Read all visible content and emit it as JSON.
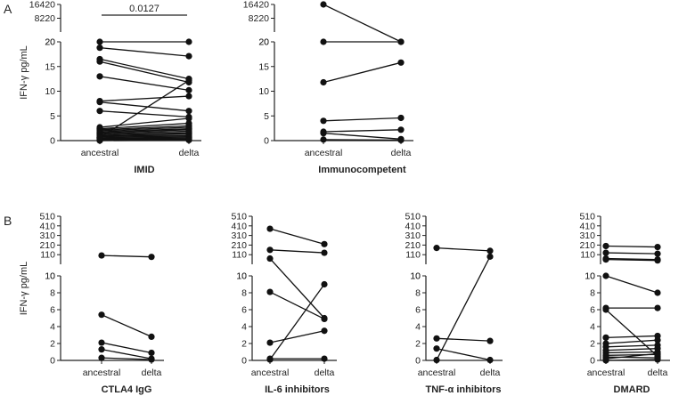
{
  "chart_data": [
    {
      "type": "scatter",
      "layout_style": "paired-lines",
      "panel_label": "A",
      "title": "IMID",
      "ylabel": "IFN-γ pg/mL",
      "categories": [
        "ancestral",
        "delta"
      ],
      "y_axis_segments": [
        {
          "ylim": [
            0,
            20
          ],
          "ticks": [
            0,
            5,
            10,
            15,
            20
          ]
        },
        {
          "ylim": [
            20,
            16420
          ],
          "ticks": [
            20,
            8220,
            16420
          ]
        }
      ],
      "significance": {
        "label": "0.0127",
        "between": [
          "ancestral",
          "delta"
        ]
      },
      "pairs": [
        [
          20,
          20
        ],
        [
          18.8,
          17.1
        ],
        [
          16.5,
          12.5
        ],
        [
          16,
          11.8
        ],
        [
          13,
          10.2
        ],
        [
          8,
          9
        ],
        [
          7.8,
          6
        ],
        [
          6,
          4.8
        ],
        [
          2.7,
          4.5
        ],
        [
          2.4,
          3.5
        ],
        [
          2.2,
          3
        ],
        [
          2,
          2.7
        ],
        [
          1.8,
          2.4
        ],
        [
          1.6,
          2.2
        ],
        [
          1.4,
          1.9
        ],
        [
          1.2,
          1.6
        ],
        [
          1,
          1.4
        ],
        [
          0.9,
          1.1
        ],
        [
          0.7,
          0.9
        ],
        [
          0.5,
          0.7
        ],
        [
          0.4,
          0.5
        ],
        [
          0.3,
          0.3
        ],
        [
          0.1,
          0.2
        ],
        [
          0,
          0.1
        ],
        [
          0.6,
          12.2
        ]
      ]
    },
    {
      "type": "scatter",
      "layout_style": "paired-lines",
      "panel_label": "",
      "title": "Immunocompetent",
      "ylabel": "",
      "categories": [
        "ancestral",
        "delta"
      ],
      "y_axis_segments": [
        {
          "ylim": [
            0,
            20
          ],
          "ticks": [
            0,
            5,
            10,
            15,
            20
          ]
        },
        {
          "ylim": [
            20,
            16420
          ],
          "ticks": [
            20,
            8220,
            16420
          ]
        }
      ],
      "pairs": [
        [
          16420,
          20
        ],
        [
          20,
          20
        ],
        [
          11.8,
          15.8
        ],
        [
          4,
          4.6
        ],
        [
          1.8,
          2.2
        ],
        [
          1.5,
          0.3
        ],
        [
          0.2,
          0.1
        ]
      ]
    },
    {
      "type": "scatter",
      "layout_style": "paired-lines",
      "panel_label": "B",
      "title": "CTLA4 IgG",
      "ylabel": "IFN-γ pg/mL",
      "categories": [
        "ancestral",
        "delta"
      ],
      "y_axis_segments": [
        {
          "ylim": [
            0,
            10
          ],
          "ticks": [
            0,
            2,
            4,
            6,
            8,
            10
          ]
        },
        {
          "ylim": [
            10,
            510
          ],
          "ticks": [
            10,
            110,
            210,
            310,
            410,
            510
          ]
        }
      ],
      "pairs": [
        [
          102,
          87
        ],
        [
          5.4,
          2.8
        ],
        [
          2.1,
          0.9
        ],
        [
          1.3,
          0.2
        ],
        [
          0.3,
          0.1
        ]
      ]
    },
    {
      "type": "scatter",
      "layout_style": "paired-lines",
      "panel_label": "",
      "title": "IL-6 inhibitors",
      "ylabel": "",
      "categories": [
        "ancestral",
        "delta"
      ],
      "y_axis_segments": [
        {
          "ylim": [
            0,
            10
          ],
          "ticks": [
            0,
            2,
            4,
            6,
            8,
            10
          ]
        },
        {
          "ylim": [
            10,
            510
          ],
          "ticks": [
            10,
            110,
            210,
            310,
            410,
            510
          ]
        }
      ],
      "pairs": [
        [
          380,
          220
        ],
        [
          160,
          130
        ],
        [
          70,
          5
        ],
        [
          8.1,
          4.9
        ],
        [
          2.1,
          3.5
        ],
        [
          0.1,
          9
        ],
        [
          0.2,
          0.2
        ]
      ]
    },
    {
      "type": "scatter",
      "layout_style": "paired-lines",
      "panel_label": "",
      "title": "TNF-α inhibitors",
      "ylabel": "",
      "categories": [
        "ancestral",
        "delta"
      ],
      "y_axis_segments": [
        {
          "ylim": [
            0,
            10
          ],
          "ticks": [
            0,
            2,
            4,
            6,
            8,
            10
          ]
        },
        {
          "ylim": [
            10,
            510
          ],
          "ticks": [
            10,
            110,
            210,
            310,
            410,
            510
          ]
        }
      ],
      "pairs": [
        [
          180,
          150
        ],
        [
          2.6,
          2.3
        ],
        [
          1.4,
          0.05
        ],
        [
          0.05,
          90
        ]
      ]
    },
    {
      "type": "scatter",
      "layout_style": "paired-lines",
      "panel_label": "",
      "title": "DMARD",
      "ylabel": "",
      "categories": [
        "ancestral",
        "delta"
      ],
      "y_axis_segments": [
        {
          "ylim": [
            0,
            10
          ],
          "ticks": [
            0,
            2,
            4,
            6,
            8,
            10
          ]
        },
        {
          "ylim": [
            10,
            510
          ],
          "ticks": [
            10,
            110,
            210,
            310,
            410,
            510
          ]
        }
      ],
      "pairs": [
        [
          200,
          190
        ],
        [
          130,
          120
        ],
        [
          70,
          60
        ],
        [
          60,
          50
        ],
        [
          10,
          8
        ],
        [
          6.2,
          6.2
        ],
        [
          6,
          0.5
        ],
        [
          2.7,
          2.9
        ],
        [
          2,
          2.4
        ],
        [
          1.6,
          1.8
        ],
        [
          1.2,
          1.4
        ],
        [
          0.9,
          1
        ],
        [
          0.6,
          0.7
        ],
        [
          0.4,
          0.3
        ],
        [
          0.2,
          0.8
        ],
        [
          0,
          0.1
        ]
      ]
    }
  ]
}
